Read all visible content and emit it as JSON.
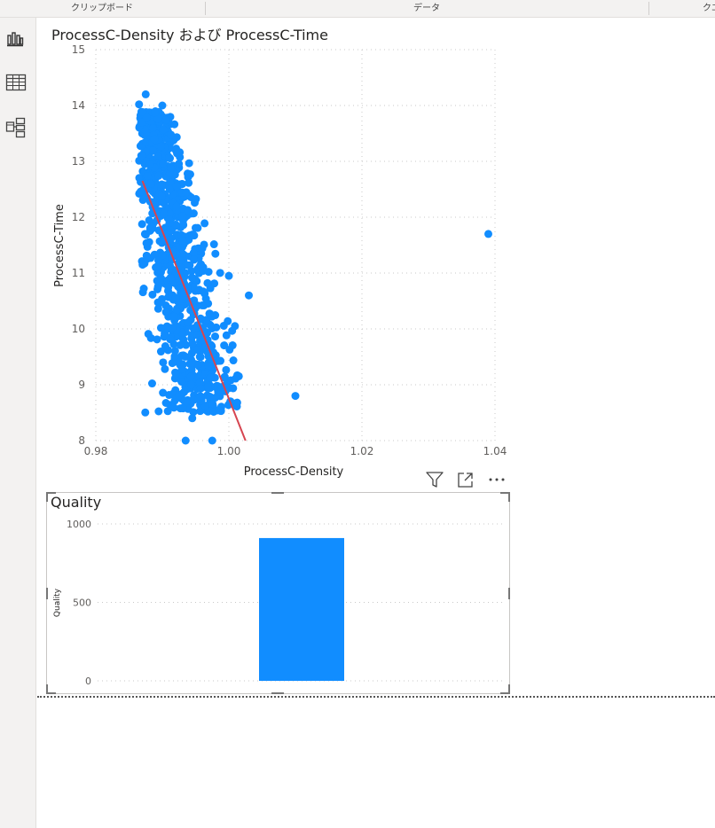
{
  "ribbon": {
    "groups": [
      "クリップボード",
      "データ",
      "クエ"
    ]
  },
  "rail": {
    "icons": [
      "report-view-icon",
      "data-view-icon",
      "model-view-icon"
    ]
  },
  "scatter": {
    "title": "ProcessC-Density および ProcessC-Time",
    "chart_data": {
      "type": "scatter",
      "title": "ProcessC-Density および ProcessC-Time",
      "xlabel": "ProcessC-Density",
      "ylabel": "ProcessC-Time",
      "xlim": [
        0.98,
        1.04
      ],
      "ylim": [
        8,
        15
      ],
      "xticks": [
        "0.98",
        "1.00",
        "1.02",
        "1.04"
      ],
      "yticks": [
        "8",
        "9",
        "10",
        "11",
        "12",
        "13",
        "14",
        "15"
      ],
      "point_color": "#118DFF",
      "trend_color": "#D64550",
      "trendline": {
        "x": [
          0.987,
          1.0025
        ],
        "y": [
          12.65,
          8.0
        ]
      },
      "outliers": [
        {
          "x": 1.039,
          "y": 11.7
        },
        {
          "x": 1.01,
          "y": 8.8
        },
        {
          "x": 1.003,
          "y": 10.6
        },
        {
          "x": 1.0,
          "y": 10.95
        },
        {
          "x": 0.9875,
          "y": 14.2
        },
        {
          "x": 0.9865,
          "y": 14.02
        },
        {
          "x": 0.99,
          "y": 14.0
        },
        {
          "x": 0.9935,
          "y": 8.0
        },
        {
          "x": 0.9975,
          "y": 8.0
        },
        {
          "x": 0.9945,
          "y": 8.4
        }
      ],
      "cluster": {
        "x_start": 0.9865,
        "x_end": 1.0015,
        "y_top": 13.9,
        "y_bottom": 8.5,
        "count": 900
      },
      "grid": true
    }
  },
  "bar": {
    "title": "Quality",
    "chart_data": {
      "type": "bar",
      "ylabel": "Quality",
      "ylim": [
        0,
        1000
      ],
      "yticks": [
        "0",
        "500",
        "1000"
      ],
      "values": [
        910
      ],
      "color": "#118DFF",
      "grid": true
    }
  },
  "visual_header": {
    "icons": [
      "filter-icon",
      "focus-mode-icon",
      "more-options-icon"
    ]
  }
}
